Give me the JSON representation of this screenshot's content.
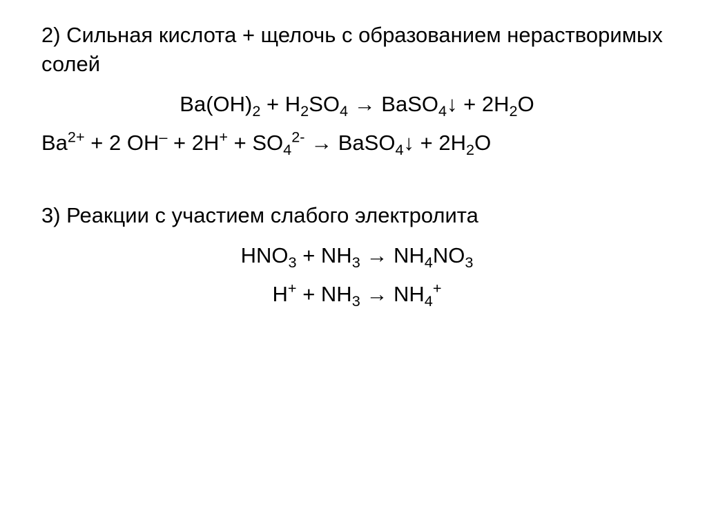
{
  "typography": {
    "font_family": "Arial",
    "base_font_size_pt": 24,
    "color": "#000000",
    "background_color": "#ffffff"
  },
  "section2": {
    "heading": "2) Сильная кислота + щелочь с образованием нерастворимых солей",
    "eq1": {
      "parts": [
        "Ba(OH)",
        "2",
        " + H",
        "2",
        "SO",
        "4",
        " → BaSO",
        "4",
        "↓ + 2H",
        "2",
        "O"
      ]
    },
    "eq2": {
      "parts": [
        "Ba",
        "2+",
        " + 2 OH",
        "–",
        " + 2H",
        "+",
        " + SO",
        "4",
        "2-",
        " → BaSO",
        "4",
        "↓ + 2H",
        "2",
        "O"
      ]
    }
  },
  "section3": {
    "heading": "3) Реакции с участием слабого электролита",
    "eq1": {
      "parts": [
        "HNO",
        "3",
        " + NH",
        "3",
        " → NH",
        "4",
        "NO",
        "3"
      ]
    },
    "eq2": {
      "parts": [
        "H",
        "+",
        " + NH",
        "3",
        " →  NH",
        "4",
        "+"
      ]
    }
  }
}
